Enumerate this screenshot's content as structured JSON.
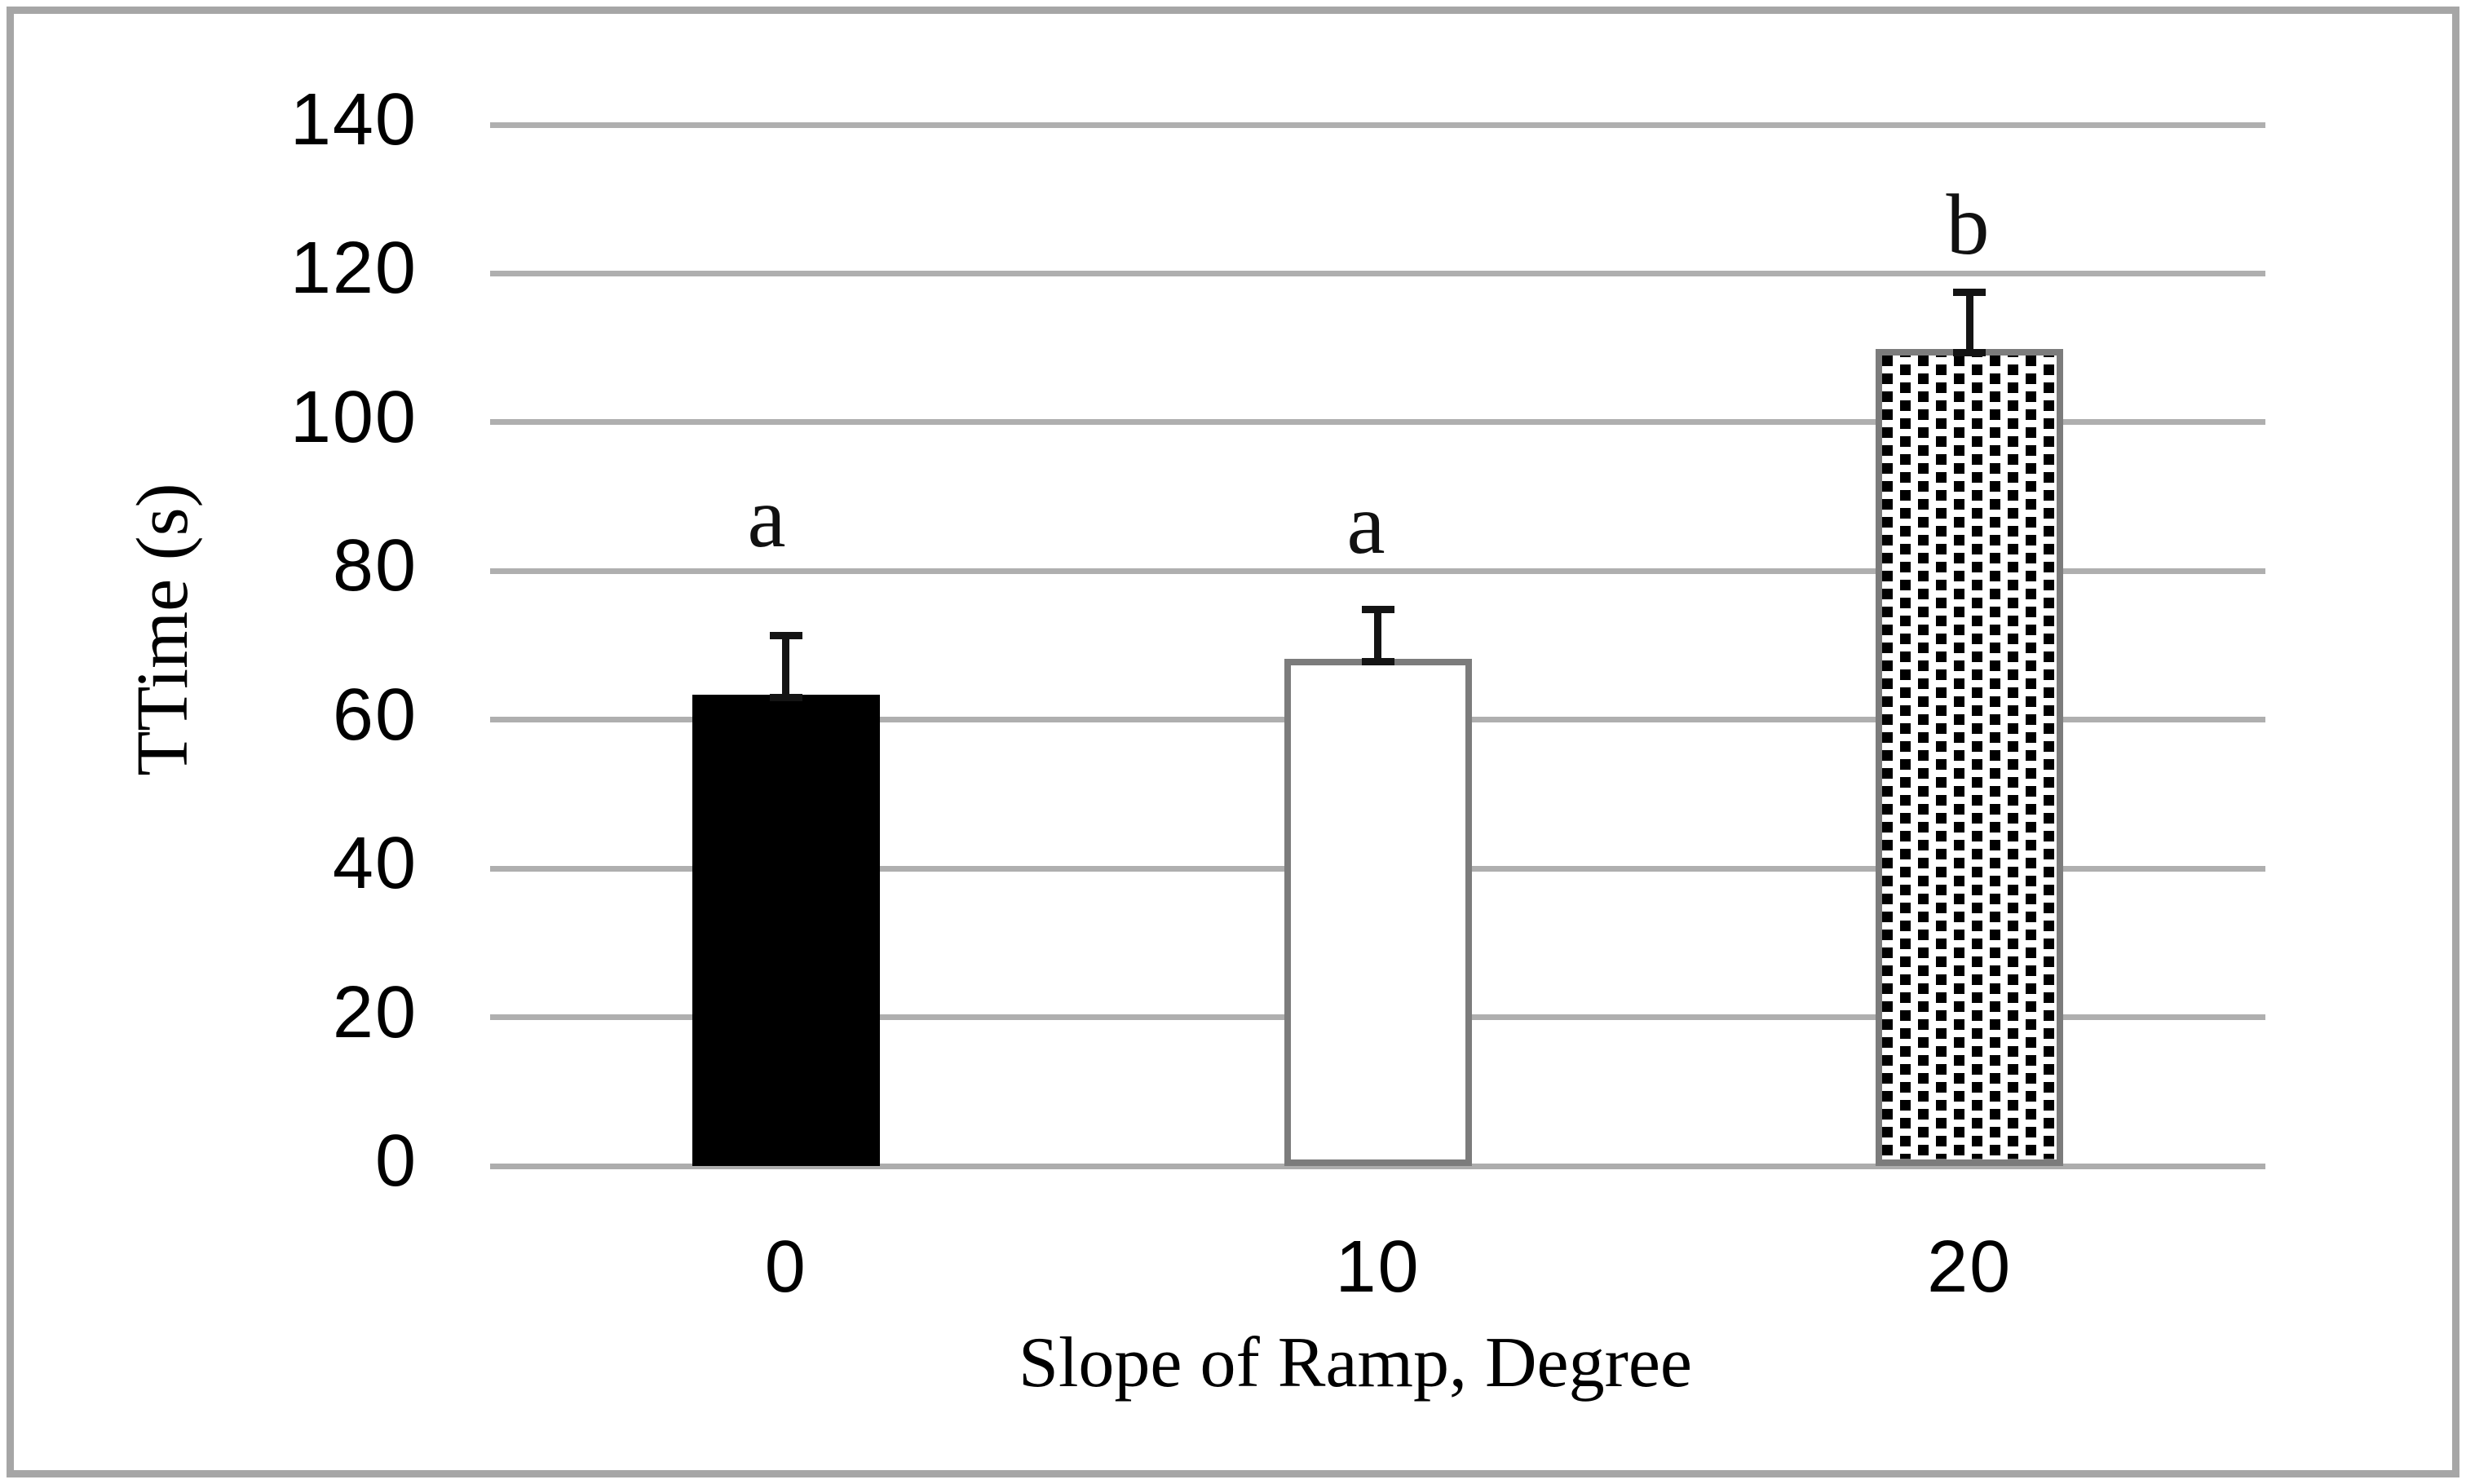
{
  "figure": {
    "background": "#FFFFFF",
    "frame_color": "#A6A6A6"
  },
  "chart_data": {
    "type": "bar",
    "title": "",
    "xlabel": "Slope of Ramp, Degree",
    "ylabel": "TTime (s)",
    "categories": [
      "0",
      "10",
      "20"
    ],
    "series": [
      {
        "name": "TTime",
        "values": [
          63.4,
          68.2,
          109.8
        ],
        "error_plus": [
          7.9,
          6.6,
          7.7
        ]
      }
    ],
    "point_labels": [
      "a",
      "a",
      "b"
    ],
    "bar_styles": [
      "solid-black",
      "white-outlined",
      "hatched-outlined"
    ],
    "ylim": [
      0,
      140
    ],
    "yticks": [
      0,
      20,
      40,
      60,
      80,
      100,
      120,
      140
    ],
    "grid": true,
    "legend": "none",
    "colors": {
      "grid_line": "#AFAFAF",
      "axis_line": "#ADADAD",
      "bar_fill_black": "#000000",
      "bar_outline": "#7C7C7C",
      "hatch_line": "#000000",
      "error_bar": "#141414",
      "text": "#000000"
    }
  }
}
